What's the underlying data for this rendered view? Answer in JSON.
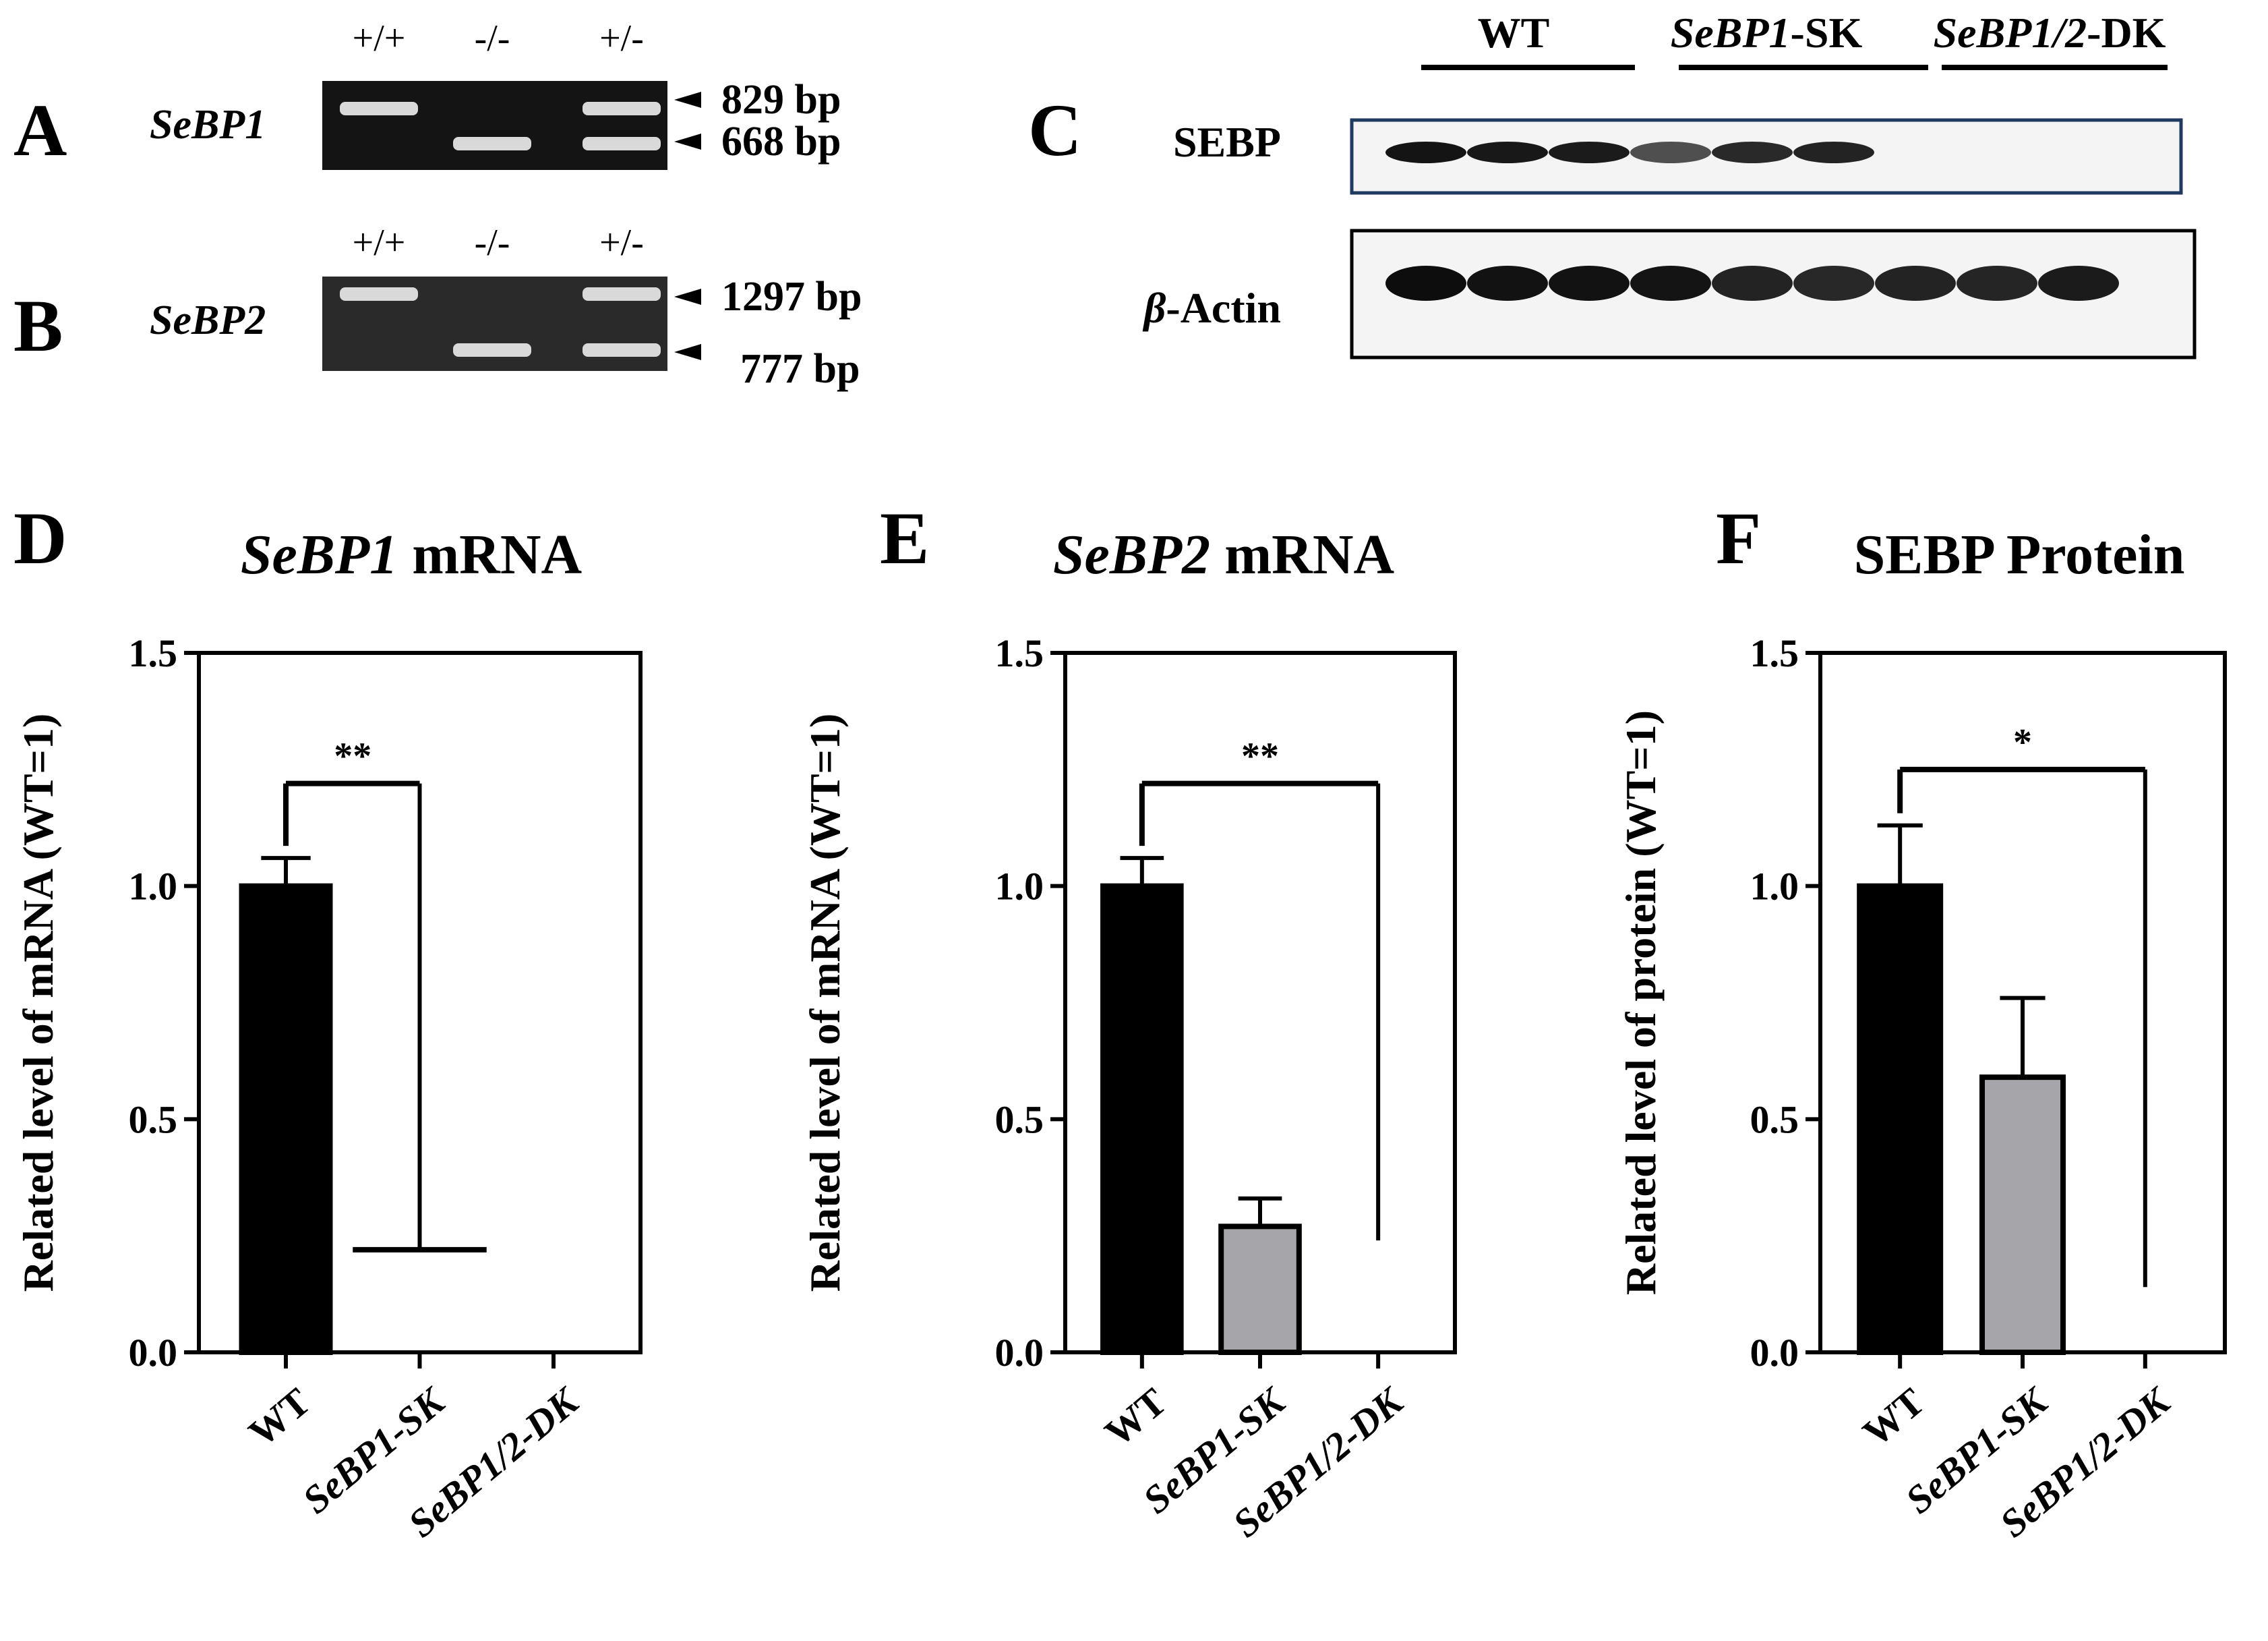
{
  "gels": [
    {
      "panel": "A",
      "gene": "SeBP1",
      "lanes": [
        "+/+",
        "-/-",
        "+/-"
      ],
      "bands": [
        "829 bp",
        "668 bp"
      ]
    },
    {
      "panel": "B",
      "gene": "SeBP2",
      "lanes": [
        "+/+",
        "-/-",
        "+/-"
      ],
      "bands": [
        "1297 bp",
        "777 bp"
      ]
    }
  ],
  "western": {
    "panel": "C",
    "groups": [
      {
        "parts": [
          {
            "text": "WT",
            "italic": false
          }
        ]
      },
      {
        "parts": [
          {
            "text": "SeBP1",
            "italic": true
          },
          {
            "text": "-SK",
            "italic": false
          }
        ]
      },
      {
        "parts": [
          {
            "text": "SeBP1/2",
            "italic": true
          },
          {
            "text": "-DK",
            "italic": false
          }
        ]
      }
    ],
    "rows": [
      {
        "label": "SEBP",
        "label_prefix": "",
        "frame_color": "#1f3a5f",
        "intensities": [
          0.95,
          0.92,
          0.9,
          0.55,
          0.8,
          0.85,
          0.0,
          0.0,
          0.0
        ]
      },
      {
        "label": "-Actin",
        "label_prefix": "β",
        "frame_color": "#000000",
        "intensities": [
          1.0,
          0.97,
          0.97,
          0.95,
          0.85,
          0.82,
          0.85,
          0.83,
          0.9
        ]
      }
    ]
  },
  "chart_data": [
    {
      "type": "bar",
      "panel": "D",
      "title": {
        "parts": [
          {
            "text": "SeBP1",
            "italic": true
          },
          {
            "text": " mRNA",
            "italic": false
          }
        ]
      },
      "ylabel": "Related level of mRNA (WT=1)",
      "ylim": [
        0,
        1.5
      ],
      "yticks": [
        "0.0",
        "0.5",
        "1.0",
        "1.5"
      ],
      "categories": [
        {
          "parts": [
            {
              "text": "WT",
              "italic": false
            }
          ]
        },
        {
          "parts": [
            {
              "text": "SeBP1-SK",
              "italic": true
            }
          ]
        },
        {
          "parts": [
            {
              "text": "SeBP1/2-DK",
              "italic": true
            }
          ]
        }
      ],
      "values": [
        1.0,
        0.0,
        0.0
      ],
      "errors": [
        0.06,
        0.0,
        0.0
      ],
      "colors": [
        "#000000",
        "#a6a6aa",
        "#a6a6aa"
      ],
      "significance": {
        "label": "**",
        "from": 0,
        "to": 1,
        "y": 1.22,
        "left_drop": 0.06,
        "right_end": 0.22,
        "right_foot": true
      }
    },
    {
      "type": "bar",
      "panel": "E",
      "title": {
        "parts": [
          {
            "text": "SeBP2",
            "italic": true
          },
          {
            "text": " mRNA",
            "italic": false
          }
        ]
      },
      "ylabel": "Related level of mRNA (WT=1)",
      "ylim": [
        0,
        1.5
      ],
      "yticks": [
        "0.0",
        "0.5",
        "1.0",
        "1.5"
      ],
      "categories": [
        {
          "parts": [
            {
              "text": "WT",
              "italic": false
            }
          ]
        },
        {
          "parts": [
            {
              "text": "SeBP1-SK",
              "italic": true
            }
          ]
        },
        {
          "parts": [
            {
              "text": "SeBP1/2-DK",
              "italic": true
            }
          ]
        }
      ],
      "values": [
        1.0,
        0.27,
        0.0
      ],
      "errors": [
        0.06,
        0.06,
        0.0
      ],
      "colors": [
        "#000000",
        "#a6a6aa",
        "#a6a6aa"
      ],
      "significance": {
        "label": "**",
        "from": 0,
        "to": 2,
        "y": 1.22,
        "left_drop": 0.06,
        "right_end": 0.24,
        "right_foot": false
      }
    },
    {
      "type": "bar",
      "panel": "F",
      "title": {
        "parts": [
          {
            "text": "SEBP Protein",
            "italic": false
          }
        ]
      },
      "ylabel": "Related level of protein (WT=1)",
      "ylim": [
        0,
        1.5
      ],
      "yticks": [
        "0.0",
        "0.5",
        "1.0",
        "1.5"
      ],
      "categories": [
        {
          "parts": [
            {
              "text": "WT",
              "italic": false
            }
          ]
        },
        {
          "parts": [
            {
              "text": "SeBP1-SK",
              "italic": true
            }
          ]
        },
        {
          "parts": [
            {
              "text": "SeBP1/2-DK",
              "italic": true
            }
          ]
        }
      ],
      "values": [
        1.0,
        0.59,
        0.0
      ],
      "errors": [
        0.13,
        0.17,
        0.0
      ],
      "colors": [
        "#000000",
        "#a6a6aa",
        "#a6a6aa"
      ],
      "significance": {
        "label": "*",
        "from": 0,
        "to": 2,
        "y": 1.25,
        "left_drop": 0.06,
        "right_end": 0.14,
        "right_foot": false
      }
    }
  ]
}
